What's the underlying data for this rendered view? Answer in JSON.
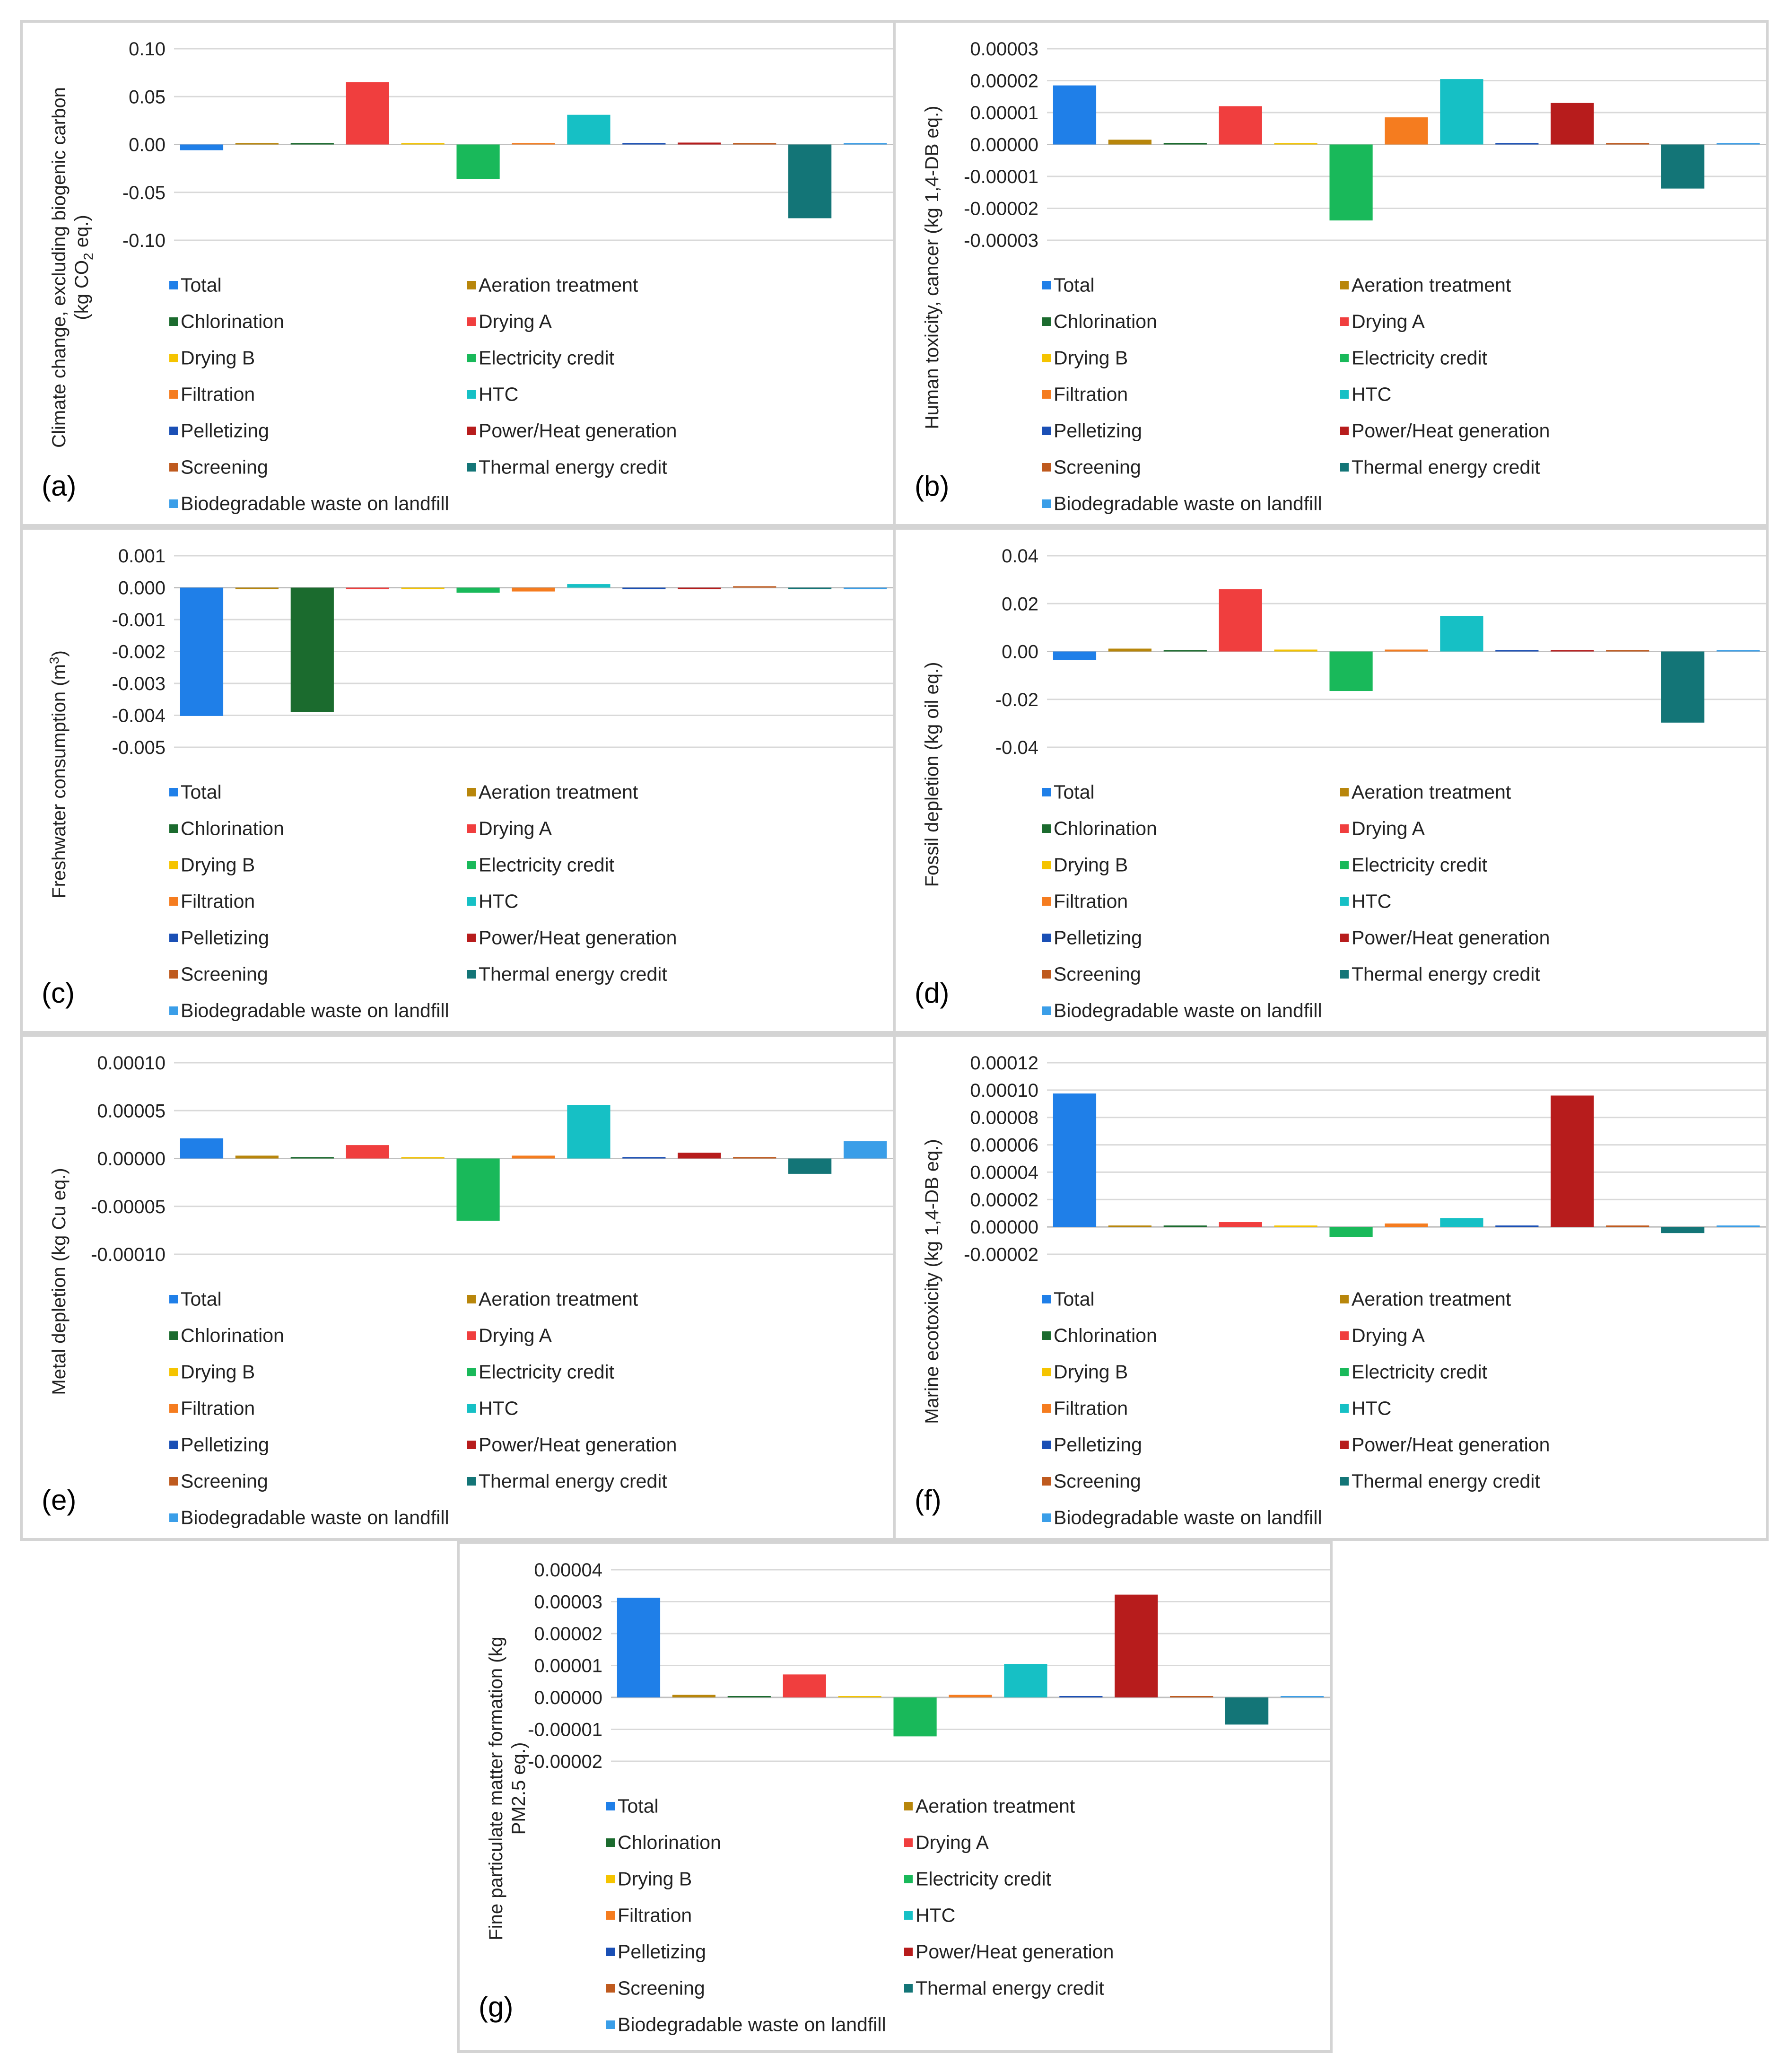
{
  "categories": [
    "Total",
    "Aeration treatment",
    "Chlorination",
    "Drying A",
    "Drying B",
    "Electricity credit",
    "Filtration",
    "HTC",
    "Pelletizing",
    "Power/Heat generation",
    "Screening",
    "Thermal energy credit",
    "Biodegradable waste on landfill"
  ],
  "colors": [
    "#1f7fe8",
    "#b8860b",
    "#1b6b2e",
    "#f03e3e",
    "#f5c400",
    "#19b95a",
    "#f57c1f",
    "#16c0c5",
    "#1a4fb5",
    "#b71c1c",
    "#bf5a1e",
    "#137577",
    "#3a9ee8"
  ],
  "chart_data": [
    {
      "type": "bar",
      "panel_label": "(a)",
      "ylabel": "Climate change, excluding biogenic carbon (kg CO2 eq.)",
      "ylabel_line1": "Climate change, excluding biogenic carbon",
      "ylabel_line2_prefix": "(kg CO",
      "ylabel_line2_sub": "2",
      "ylabel_line2_suffix": " eq.)",
      "ylim": [
        -0.1,
        0.1
      ],
      "ticks": [
        0.1,
        0.05,
        0.0,
        -0.05,
        -0.1
      ],
      "tick_labels": [
        "0.10",
        "0.05",
        "0.00",
        "-0.05",
        "-0.10"
      ],
      "values": [
        -0.006,
        0.001,
        0.0005,
        0.065,
        0.001,
        -0.036,
        0.001,
        0.031,
        0.0005,
        0.002,
        0.0005,
        -0.077,
        0.001
      ]
    },
    {
      "type": "bar",
      "panel_label": "(b)",
      "ylabel": "Human toxicity, cancer (kg 1,4-DB eq.)",
      "ylim": [
        -3e-05,
        3e-05
      ],
      "ticks": [
        3e-05,
        2e-05,
        1e-05,
        0.0,
        -1e-05,
        -2e-05,
        -3e-05
      ],
      "tick_labels": [
        "0.00003",
        "0.00002",
        "0.00001",
        "0.00000",
        "-0.00001",
        "-0.00002",
        "-0.00003"
      ],
      "values": [
        1.85e-05,
        1.5e-06,
        5e-07,
        1.2e-05,
        2e-07,
        -2.38e-05,
        8.5e-06,
        2.05e-05,
        3e-07,
        1.3e-05,
        1e-07,
        -1.38e-05,
        2e-07
      ]
    },
    {
      "type": "bar",
      "panel_label": "(c)",
      "ylabel": "Freshwater consumption (m3)",
      "ylabel_prefix": "Freshwater consumption (m",
      "ylabel_sup": "3",
      "ylabel_suffix": ")",
      "ylim": [
        -0.005,
        0.001
      ],
      "ticks": [
        0.001,
        0.0,
        -0.001,
        -0.002,
        -0.003,
        -0.004,
        -0.005
      ],
      "tick_labels": [
        "0.001",
        "0.000",
        "-0.001",
        "-0.002",
        "-0.003",
        "-0.004",
        "-0.005"
      ],
      "values": [
        -0.00402,
        -1e-05,
        -0.00389,
        -1e-05,
        -1e-05,
        -0.00016,
        -0.00012,
        0.00011,
        -2e-05,
        -1e-05,
        0.0,
        -4e-05,
        -1e-05
      ]
    },
    {
      "type": "bar",
      "panel_label": "(d)",
      "ylabel": "Fossil depletion (kg oil eq.)",
      "ylim": [
        -0.04,
        0.04
      ],
      "ticks": [
        0.04,
        0.02,
        0.0,
        -0.02,
        -0.04
      ],
      "tick_labels": [
        "0.04",
        "0.02",
        "0.00",
        "-0.02",
        "-0.04"
      ],
      "values": [
        -0.0035,
        0.0012,
        0.0003,
        0.026,
        0.0008,
        -0.0165,
        0.0008,
        0.0148,
        0.0003,
        0.0004,
        0.0002,
        -0.0297,
        0.0003
      ]
    },
    {
      "type": "bar",
      "panel_label": "(e)",
      "ylabel": "Metal depletion (kg Cu eq.)",
      "ylim": [
        -0.0001,
        0.0001
      ],
      "ticks": [
        0.0001,
        5e-05,
        0.0,
        -5e-05,
        -0.0001
      ],
      "tick_labels": [
        "0.00010",
        "0.00005",
        "0.00000",
        "-0.00005",
        "-0.00010"
      ],
      "values": [
        2.1e-05,
        3e-06,
        1e-06,
        1.4e-05,
        1e-06,
        -6.5e-05,
        3e-06,
        5.6e-05,
        1e-06,
        6e-06,
        5e-07,
        -1.6e-05,
        1.8e-05
      ]
    },
    {
      "type": "bar",
      "panel_label": "(f)",
      "ylabel": "Marine ecotoxicity (kg 1,4-DB eq.)",
      "ylim": [
        -2e-05,
        0.00012
      ],
      "ticks": [
        0.00012,
        0.0001,
        8e-05,
        6e-05,
        4e-05,
        2e-05,
        0.0,
        -2e-05
      ],
      "tick_labels": [
        "0.00012",
        "0.00010",
        "0.00008",
        "0.00006",
        "0.00004",
        "0.00002",
        "0.00000",
        "-0.00002"
      ],
      "values": [
        9.75e-05,
        5e-07,
        5e-07,
        3.5e-06,
        5e-07,
        -7.5e-06,
        2.5e-06,
        6.5e-06,
        5e-07,
        9.6e-05,
        2e-07,
        -4.5e-06,
        3e-07
      ]
    },
    {
      "type": "bar",
      "panel_label": "(g)",
      "ylabel": "Fine particulate matter formation (kg PM2.5 eq.)",
      "ylabel_line1": "Fine particulate matter formation (kg",
      "ylabel_line2": "PM2.5 eq.)",
      "ylim": [
        -2e-05,
        4e-05
      ],
      "ticks": [
        4e-05,
        3e-05,
        2e-05,
        1e-05,
        0.0,
        -1e-05,
        -2e-05
      ],
      "tick_labels": [
        "0.00004",
        "0.00003",
        "0.00002",
        "0.00001",
        "0.00000",
        "-0.00001",
        "-0.00002"
      ],
      "values": [
        3.12e-05,
        8e-07,
        3e-07,
        7.2e-06,
        3e-07,
        -1.22e-05,
        8e-07,
        1.05e-05,
        3e-07,
        3.22e-05,
        1e-07,
        -8.5e-06,
        3e-07
      ]
    }
  ]
}
